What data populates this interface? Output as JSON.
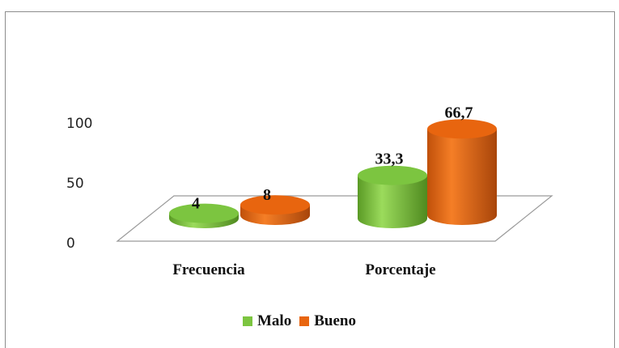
{
  "chart_data": {
    "type": "bar",
    "style": "3d-cylinder",
    "title": "",
    "xlabel": "",
    "ylabel": "",
    "categories": [
      "Frecuencia",
      "Porcentaje"
    ],
    "series": [
      {
        "name": "Malo",
        "color": "#7cc540",
        "values": [
          4,
          33.3
        ],
        "labels": [
          "4",
          "33,3"
        ]
      },
      {
        "name": "Bueno",
        "color": "#e8650f",
        "values": [
          8,
          66.7
        ],
        "labels": [
          "8",
          "66,7"
        ]
      }
    ],
    "yticks": [
      "0",
      "50",
      "100"
    ],
    "ylim": [
      0,
      100
    ],
    "grid": false,
    "legend_position": "bottom"
  }
}
